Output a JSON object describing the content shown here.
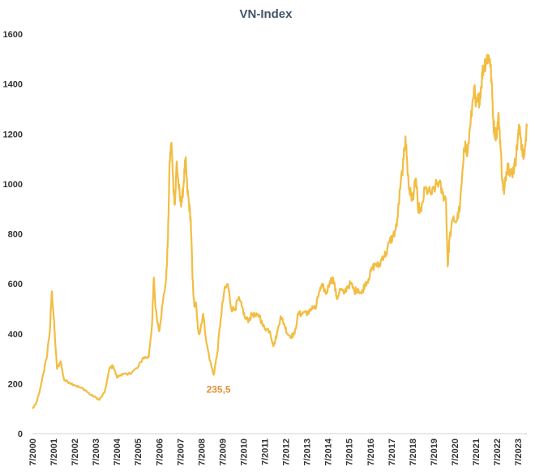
{
  "chart_data": {
    "type": "line",
    "title": "VN-Index",
    "xlabel": "",
    "ylabel": "",
    "ylim": [
      0,
      1600
    ],
    "y_ticks": [
      "0",
      "200",
      "400",
      "600",
      "800",
      "1000",
      "1200",
      "1400",
      "1600"
    ],
    "x_range": [
      "2000-07",
      "2023-12"
    ],
    "x_ticks": [
      "7/2000",
      "7/2001",
      "7/2002",
      "7/2003",
      "7/2004",
      "7/2005",
      "7/2006",
      "7/2007",
      "7/2008",
      "7/2009",
      "7/2010",
      "7/2011",
      "7/2012",
      "7/2013",
      "7/2014",
      "7/2015",
      "7/2016",
      "7/2017",
      "7/2018",
      "7/2019",
      "7/2020",
      "7/2021",
      "7/2022",
      "7/2023"
    ],
    "grid": false,
    "legend": "none",
    "series": [
      {
        "color": "#f2bd42",
        "points": [
          [
            "2000-07",
            100
          ],
          [
            "2000-09",
            118
          ],
          [
            "2000-11",
            165
          ],
          [
            "2001-01",
            235
          ],
          [
            "2001-03",
            300
          ],
          [
            "2001-05",
            420
          ],
          [
            "2001-06",
            570
          ],
          [
            "2001-07",
            480
          ],
          [
            "2001-08",
            360
          ],
          [
            "2001-09",
            260
          ],
          [
            "2001-11",
            290
          ],
          [
            "2002-01",
            215
          ],
          [
            "2002-04",
            205
          ],
          [
            "2002-07",
            195
          ],
          [
            "2002-10",
            185
          ],
          [
            "2003-01",
            175
          ],
          [
            "2003-04",
            155
          ],
          [
            "2003-07",
            145
          ],
          [
            "2003-09",
            135
          ],
          [
            "2003-12",
            165
          ],
          [
            "2004-03",
            265
          ],
          [
            "2004-05",
            270
          ],
          [
            "2004-07",
            225
          ],
          [
            "2004-10",
            240
          ],
          [
            "2005-01",
            235
          ],
          [
            "2005-04",
            250
          ],
          [
            "2005-07",
            265
          ],
          [
            "2005-10",
            305
          ],
          [
            "2006-01",
            305
          ],
          [
            "2006-03",
            440
          ],
          [
            "2006-04",
            625
          ],
          [
            "2006-05",
            500
          ],
          [
            "2006-07",
            410
          ],
          [
            "2006-09",
            520
          ],
          [
            "2006-11",
            620
          ],
          [
            "2006-12",
            780
          ],
          [
            "2007-01",
            1090
          ],
          [
            "2007-02",
            1165
          ],
          [
            "2007-03",
            1000
          ],
          [
            "2007-04",
            920
          ],
          [
            "2007-05",
            1090
          ],
          [
            "2007-06",
            1000
          ],
          [
            "2007-07",
            930
          ],
          [
            "2007-08",
            930
          ],
          [
            "2007-09",
            1010
          ],
          [
            "2007-10",
            1100
          ],
          [
            "2007-11",
            980
          ],
          [
            "2007-12",
            920
          ],
          [
            "2008-01",
            850
          ],
          [
            "2008-02",
            620
          ],
          [
            "2008-03",
            510
          ],
          [
            "2008-04",
            520
          ],
          [
            "2008-05",
            420
          ],
          [
            "2008-06",
            400
          ],
          [
            "2008-08",
            480
          ],
          [
            "2008-10",
            360
          ],
          [
            "2008-12",
            290
          ],
          [
            "2009-02",
            235.5
          ],
          [
            "2009-04",
            320
          ],
          [
            "2009-06",
            460
          ],
          [
            "2009-08",
            570
          ],
          [
            "2009-10",
            600
          ],
          [
            "2009-12",
            500
          ],
          [
            "2010-02",
            500
          ],
          [
            "2010-04",
            540
          ],
          [
            "2010-06",
            510
          ],
          [
            "2010-08",
            460
          ],
          [
            "2010-10",
            455
          ],
          [
            "2010-12",
            480
          ],
          [
            "2011-02",
            470
          ],
          [
            "2011-04",
            475
          ],
          [
            "2011-06",
            430
          ],
          [
            "2011-08",
            420
          ],
          [
            "2011-10",
            410
          ],
          [
            "2011-12",
            350
          ],
          [
            "2012-02",
            400
          ],
          [
            "2012-04",
            470
          ],
          [
            "2012-06",
            440
          ],
          [
            "2012-08",
            400
          ],
          [
            "2012-10",
            390
          ],
          [
            "2012-12",
            400
          ],
          [
            "2013-02",
            480
          ],
          [
            "2013-04",
            480
          ],
          [
            "2013-06",
            490
          ],
          [
            "2013-08",
            480
          ],
          [
            "2013-10",
            510
          ],
          [
            "2013-12",
            500
          ],
          [
            "2014-02",
            570
          ],
          [
            "2014-04",
            590
          ],
          [
            "2014-06",
            560
          ],
          [
            "2014-08",
            610
          ],
          [
            "2014-10",
            620
          ],
          [
            "2014-12",
            540
          ],
          [
            "2015-02",
            580
          ],
          [
            "2015-04",
            560
          ],
          [
            "2015-06",
            590
          ],
          [
            "2015-08",
            600
          ],
          [
            "2015-10",
            570
          ],
          [
            "2015-12",
            580
          ],
          [
            "2016-02",
            560
          ],
          [
            "2016-04",
            600
          ],
          [
            "2016-06",
            620
          ],
          [
            "2016-08",
            660
          ],
          [
            "2016-10",
            680
          ],
          [
            "2016-12",
            670
          ],
          [
            "2017-02",
            710
          ],
          [
            "2017-04",
            720
          ],
          [
            "2017-06",
            770
          ],
          [
            "2017-08",
            790
          ],
          [
            "2017-10",
            830
          ],
          [
            "2017-12",
            980
          ],
          [
            "2018-02",
            1100
          ],
          [
            "2018-03",
            1190
          ],
          [
            "2018-04",
            1080
          ],
          [
            "2018-05",
            980
          ],
          [
            "2018-06",
            960
          ],
          [
            "2018-07",
            940
          ],
          [
            "2018-08",
            980
          ],
          [
            "2018-09",
            1020
          ],
          [
            "2018-10",
            910
          ],
          [
            "2018-12",
            890
          ],
          [
            "2019-02",
            980
          ],
          [
            "2019-04",
            970
          ],
          [
            "2019-06",
            960
          ],
          [
            "2019-08",
            990
          ],
          [
            "2019-10",
            1010
          ],
          [
            "2019-12",
            960
          ],
          [
            "2020-02",
            940
          ],
          [
            "2020-03",
            670
          ],
          [
            "2020-04",
            780
          ],
          [
            "2020-06",
            860
          ],
          [
            "2020-08",
            850
          ],
          [
            "2020-10",
            910
          ],
          [
            "2020-12",
            1100
          ],
          [
            "2021-01",
            1170
          ],
          [
            "2021-02",
            1110
          ],
          [
            "2021-04",
            1240
          ],
          [
            "2021-06",
            1390
          ],
          [
            "2021-07",
            1310
          ],
          [
            "2021-08",
            1330
          ],
          [
            "2021-09",
            1340
          ],
          [
            "2021-10",
            1390
          ],
          [
            "2021-11",
            1460
          ],
          [
            "2021-12",
            1480
          ],
          [
            "2022-01",
            1500
          ],
          [
            "2022-02",
            1510
          ],
          [
            "2022-03",
            1500
          ],
          [
            "2022-04",
            1400
          ],
          [
            "2022-05",
            1240
          ],
          [
            "2022-06",
            1200
          ],
          [
            "2022-07",
            1210
          ],
          [
            "2022-08",
            1270
          ],
          [
            "2022-09",
            1150
          ],
          [
            "2022-10",
            1020
          ],
          [
            "2022-11",
            960
          ],
          [
            "2022-12",
            1030
          ],
          [
            "2023-01",
            1080
          ],
          [
            "2023-02",
            1060
          ],
          [
            "2023-03",
            1040
          ],
          [
            "2023-04",
            1050
          ],
          [
            "2023-05",
            1070
          ],
          [
            "2023-06",
            1120
          ],
          [
            "2023-07",
            1190
          ],
          [
            "2023-08",
            1230
          ],
          [
            "2023-09",
            1150
          ],
          [
            "2023-10",
            1100
          ],
          [
            "2023-11",
            1150
          ],
          [
            "2023-12",
            1230
          ]
        ]
      }
    ],
    "annotations": [
      {
        "text": "235,5",
        "x": "2009-02",
        "y": 235.5,
        "color": "#e0913a"
      }
    ]
  }
}
